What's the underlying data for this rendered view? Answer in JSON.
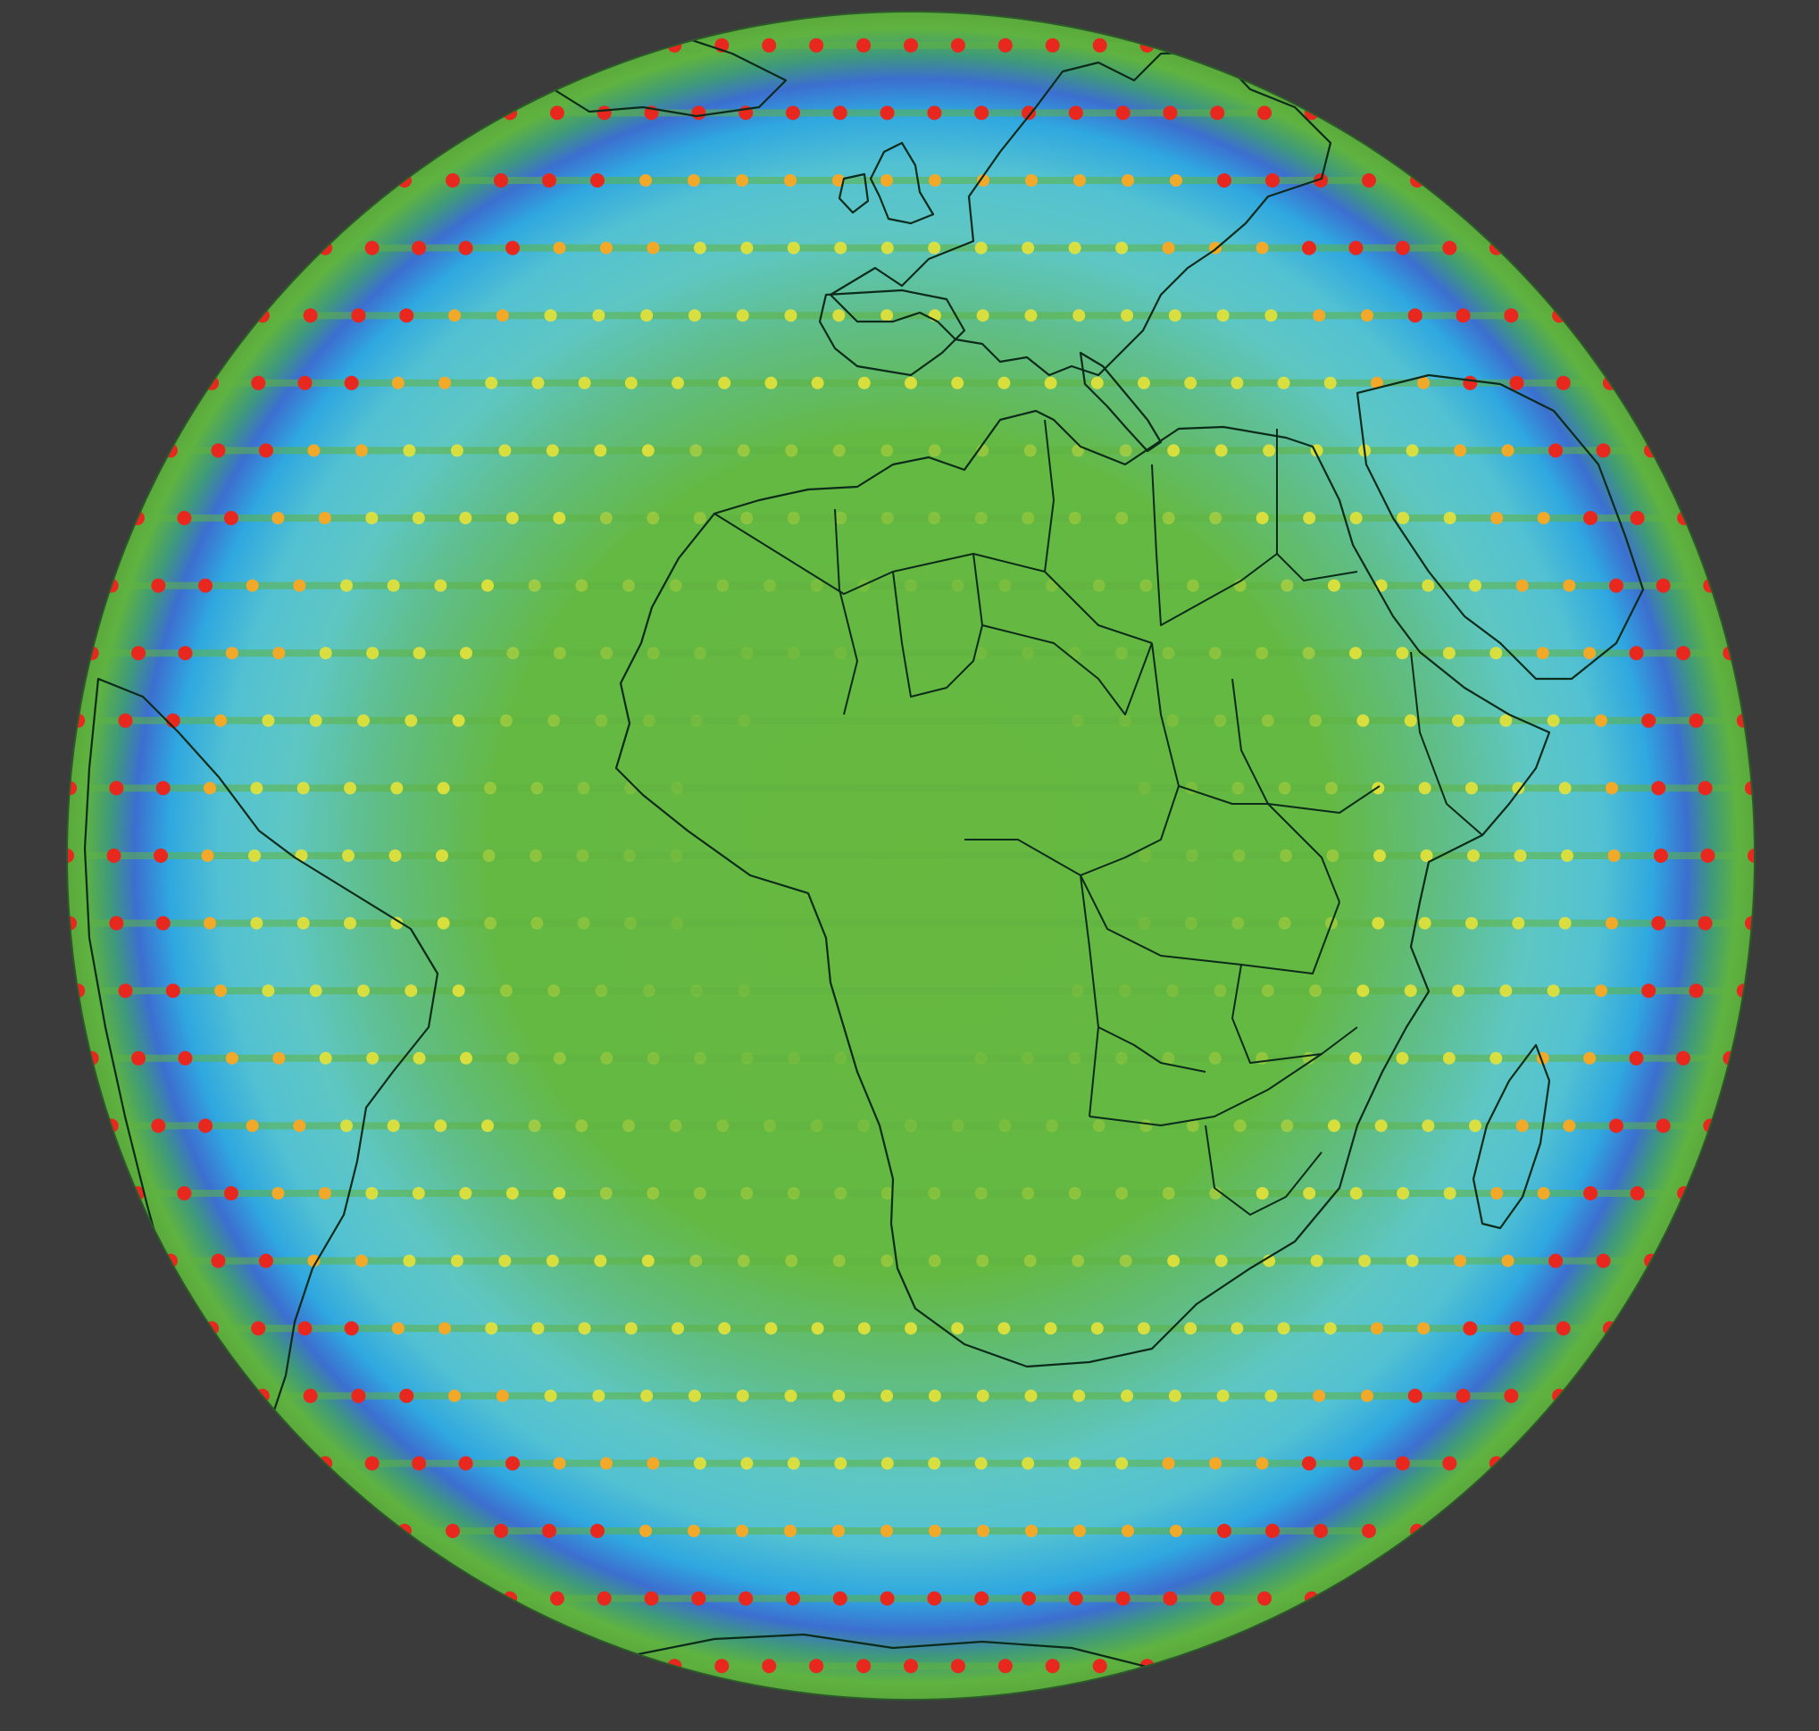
{
  "map": {
    "projection": "orthographic",
    "colors": {
      "background": "#3b3b3b",
      "globe_center": "#66b83f",
      "ring_cyan": "#5fc6c8",
      "ring_blue": "#2fa7e0",
      "ring_deep_blue": "#3c6fd0",
      "rim_green": "#5fb340",
      "outline": "#0b2b1a",
      "dot_low": "#e6e23a",
      "dot_mid": "#f2a92a",
      "dot_high": "#e8281f"
    },
    "graticule_rows": 25,
    "layers": [
      "globe-shading",
      "latitude-bands",
      "sample-dots",
      "coastlines",
      "country-borders"
    ]
  }
}
